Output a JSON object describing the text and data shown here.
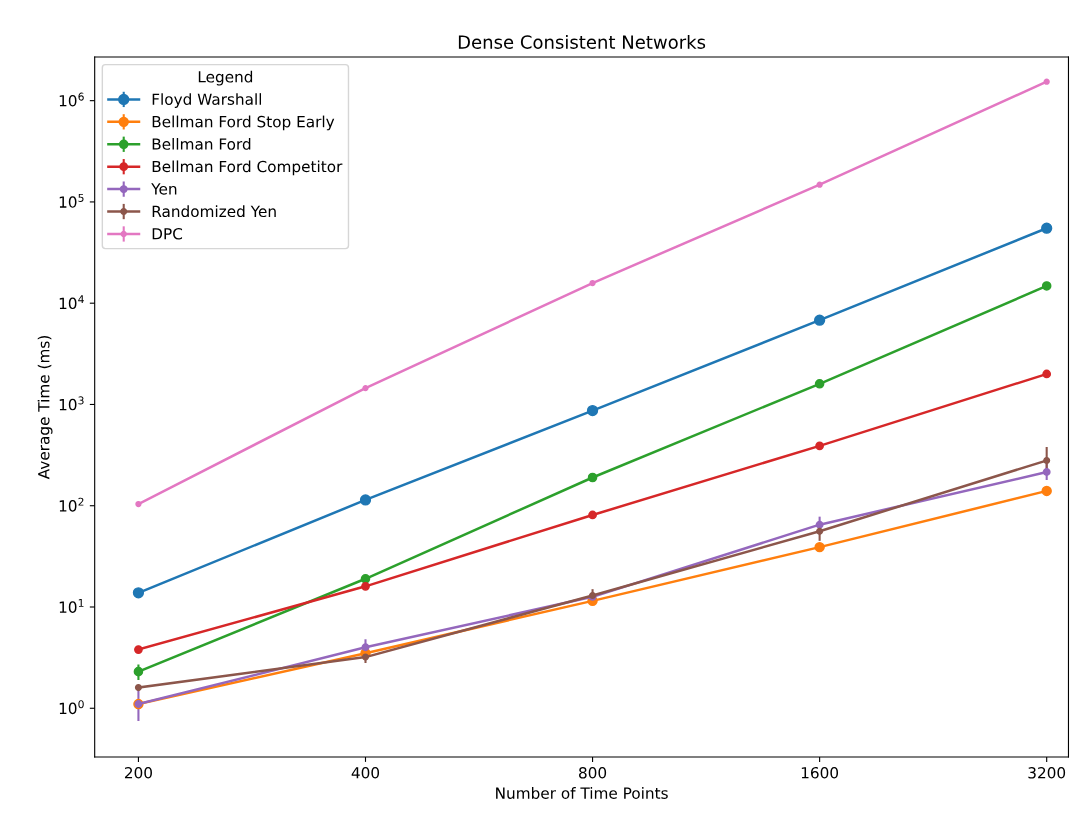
{
  "chart_data": {
    "type": "line",
    "title": "Dense Consistent Networks",
    "xlabel": "Number of Time Points",
    "ylabel": "Average Time (ms)",
    "legend_title": "Legend",
    "legend": "top left",
    "log": "xy",
    "grid": false,
    "marker": "circle",
    "line_style": "solid",
    "x": [
      200,
      400,
      800,
      1600,
      3200
    ],
    "xlim": [
      175,
      3420
    ],
    "xticks": [
      200,
      400,
      800,
      1600,
      3200
    ],
    "ylim": [
      0.33,
      2700000
    ],
    "yticks": [
      {
        "value": 1,
        "label": "10$^{0}$"
      },
      {
        "value": 10,
        "label": "10$^{1}$"
      },
      {
        "value": 100,
        "label": "10$^{2}$"
      },
      {
        "value": 1000,
        "label": "10$^{3}$"
      },
      {
        "value": 10000,
        "label": "10$^{4}$"
      },
      {
        "value": 100000,
        "label": "10$^{5}$"
      },
      {
        "value": 1000000,
        "label": "10$^{6}$"
      }
    ],
    "series": [
      {
        "name": "Floyd Warshall",
        "color": "#1f77b4",
        "values": [
          13.8,
          114,
          870,
          6800,
          55000
        ]
      },
      {
        "name": "Bellman Ford Stop Early",
        "color": "#ff7f0e",
        "values": [
          1.1,
          3.5,
          11.5,
          39,
          140
        ]
      },
      {
        "name": "Bellman Ford",
        "color": "#2ca02c",
        "values": [
          2.3,
          19,
          190,
          1600,
          14800
        ],
        "errors": [
          [
            1.9,
            2.7
          ],
          null,
          null,
          null,
          null
        ]
      },
      {
        "name": "Bellman Ford Competitor",
        "color": "#d62728",
        "values": [
          3.8,
          16,
          81,
          390,
          2000
        ]
      },
      {
        "name": "Yen",
        "color": "#9467bd",
        "values": [
          1.1,
          4.0,
          12.6,
          65,
          215
        ],
        "errors": [
          [
            0.75,
            1.6
          ],
          [
            3.3,
            4.8
          ],
          null,
          [
            52,
            78
          ],
          [
            180,
            260
          ]
        ]
      },
      {
        "name": "Randomized Yen",
        "color": "#8c564b",
        "values": [
          1.6,
          3.2,
          13,
          56,
          280
        ],
        "errors": [
          null,
          [
            2.8,
            3.9
          ],
          [
            11,
            15
          ],
          [
            45,
            70
          ],
          [
            210,
            380
          ]
        ]
      },
      {
        "name": "DPC",
        "color": "#e377c2",
        "values": [
          104,
          1450,
          15800,
          148000,
          1540000
        ]
      }
    ]
  }
}
